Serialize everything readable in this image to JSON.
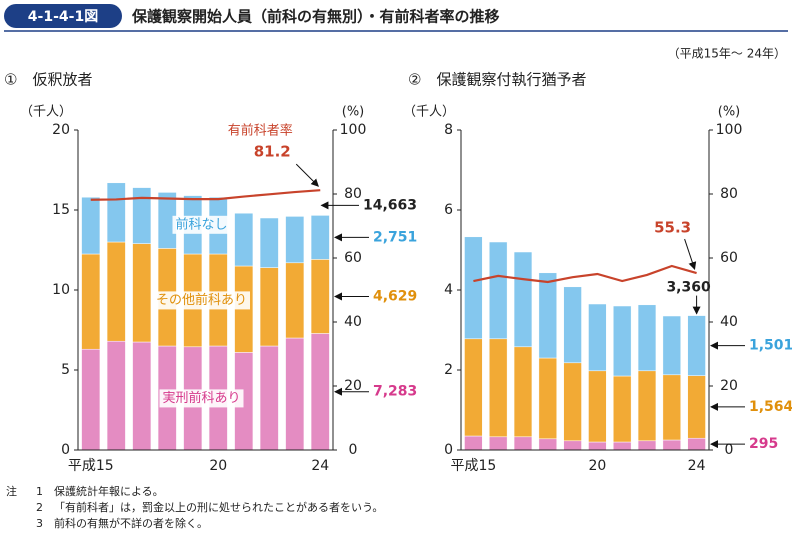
{
  "header": {
    "figure_no": "4-1-4-1図",
    "title": "保護観察開始人員（前科の有無別）・有前科者率の推移",
    "period": "（平成15年～ 24年）"
  },
  "chart_data": [
    {
      "type": "bar",
      "subtitle": "①　仮釈放者",
      "ylabel": "（千人）",
      "y2label": "(%)",
      "stacked": true,
      "categories": [
        "平成15",
        null,
        null,
        null,
        null,
        "20",
        null,
        null,
        null,
        "24"
      ],
      "ylim": [
        0,
        20
      ],
      "yticks": [
        0,
        5,
        10,
        15,
        20
      ],
      "y2lim": [
        0,
        100
      ],
      "y2ticks": [
        0,
        20,
        40,
        60,
        80,
        100
      ],
      "series": [
        {
          "name": "実刑前科あり",
          "color": "#e48cc2",
          "label_color": "#d63a8c",
          "values": [
            6.3,
            6.8,
            6.75,
            6.5,
            6.45,
            6.5,
            6.1,
            6.5,
            7.0,
            7.283
          ],
          "value_labels": [
            null,
            null,
            null,
            null,
            null,
            null,
            null,
            null,
            null,
            "7,283"
          ]
        },
        {
          "name": "その他前科あり",
          "color": "#f2aa35",
          "label_color": "#e0900c",
          "values": [
            5.95,
            6.2,
            6.15,
            6.1,
            5.8,
            5.75,
            5.4,
            4.9,
            4.7,
            4.629
          ],
          "value_labels": [
            null,
            null,
            null,
            null,
            null,
            null,
            null,
            null,
            null,
            "4,629"
          ]
        },
        {
          "name": "前科なし",
          "color": "#84c7ee",
          "label_color": "#3aa3dc",
          "values": [
            3.55,
            3.7,
            3.5,
            3.5,
            3.65,
            3.55,
            3.3,
            3.1,
            2.9,
            2.751
          ],
          "value_labels": [
            null,
            null,
            null,
            null,
            null,
            null,
            null,
            null,
            null,
            "2,751"
          ]
        },
        {
          "name": "有前科者率",
          "type": "line",
          "axis": "y2",
          "color": "#c8432b",
          "values": [
            78.2,
            78.3,
            78.8,
            78.6,
            78.4,
            78.4,
            79.2,
            79.9,
            80.6,
            81.2
          ],
          "value_labels": [
            null,
            null,
            null,
            null,
            null,
            null,
            null,
            null,
            null,
            "81.2"
          ]
        }
      ],
      "total_label": {
        "value": 14.663,
        "label": "14,663"
      }
    },
    {
      "type": "bar",
      "subtitle": "②　保護観察付執行猶予者",
      "ylabel": "（千人）",
      "y2label": "(%)",
      "stacked": true,
      "categories": [
        "平成15",
        null,
        null,
        null,
        null,
        "20",
        null,
        null,
        null,
        "24"
      ],
      "ylim": [
        0,
        8
      ],
      "yticks": [
        0,
        2,
        4,
        6,
        8
      ],
      "y2lim": [
        0,
        100
      ],
      "y2ticks": [
        0,
        20,
        40,
        60,
        80,
        100
      ],
      "series": [
        {
          "color": "#e48cc2",
          "label_color": "#d63a8c",
          "values": [
            0.35,
            0.33,
            0.33,
            0.28,
            0.23,
            0.2,
            0.2,
            0.23,
            0.25,
            0.295
          ],
          "value_labels": [
            null,
            null,
            null,
            null,
            null,
            null,
            null,
            null,
            null,
            "295"
          ]
        },
        {
          "color": "#f2aa35",
          "label_color": "#e0900c",
          "values": [
            2.43,
            2.45,
            2.25,
            2.02,
            1.95,
            1.78,
            1.65,
            1.75,
            1.63,
            1.564
          ],
          "value_labels": [
            null,
            null,
            null,
            null,
            null,
            null,
            null,
            null,
            null,
            "1,564"
          ]
        },
        {
          "color": "#84c7ee",
          "label_color": "#3aa3dc",
          "values": [
            2.55,
            2.42,
            2.37,
            2.13,
            1.9,
            1.67,
            1.75,
            1.65,
            1.47,
            1.501
          ],
          "value_labels": [
            null,
            null,
            null,
            null,
            null,
            null,
            null,
            null,
            null,
            "1,501"
          ]
        },
        {
          "type": "line",
          "axis": "y2",
          "color": "#c8432b",
          "values": [
            52.8,
            54.4,
            53.4,
            52.5,
            54.0,
            55.0,
            52.8,
            54.7,
            57.5,
            55.3
          ],
          "value_labels": [
            null,
            null,
            null,
            null,
            null,
            null,
            null,
            null,
            null,
            "55.3"
          ]
        }
      ],
      "total_label": {
        "value": 3.36,
        "label": "3,360"
      }
    }
  ],
  "notes": {
    "prefix": "注",
    "items": [
      [
        "1",
        "保護統計年報による。"
      ],
      [
        "2",
        "「有前科者」は，罰金以上の刑に処せられたことがある者をいう。"
      ],
      [
        "3",
        "前科の有無が不詳の者を除く。"
      ]
    ]
  }
}
